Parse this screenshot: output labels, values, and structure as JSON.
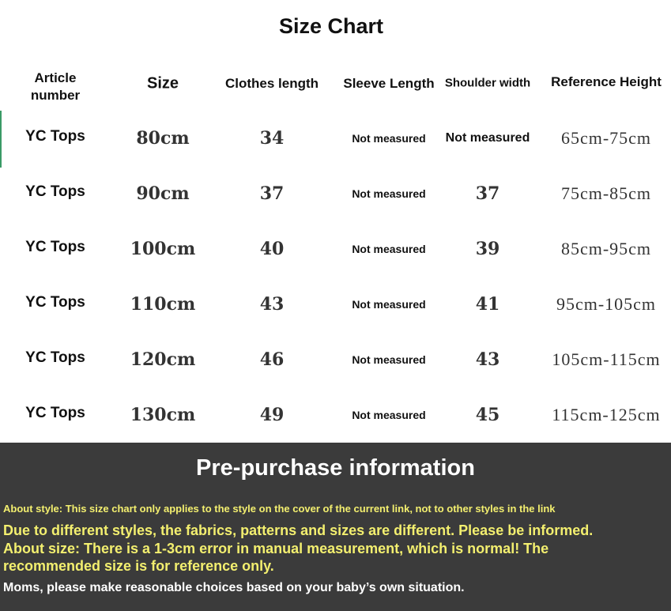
{
  "title": "Size Chart",
  "headers": [
    "Article number",
    "Size",
    "Clothes length",
    "Sleeve Length",
    "Shoulder width",
    "Reference Height"
  ],
  "rows": [
    {
      "article": "YC Tops",
      "size": "80cm",
      "clothes_length": "34",
      "sleeve_length": "Not measured",
      "shoulder_width": "Not measured",
      "reference_height": "65cm-75cm"
    },
    {
      "article": "YC Tops",
      "size": "90cm",
      "clothes_length": "37",
      "sleeve_length": "Not measured",
      "shoulder_width": "37",
      "reference_height": "75cm-85cm"
    },
    {
      "article": "YC Tops",
      "size": "100cm",
      "clothes_length": "40",
      "sleeve_length": "Not measured",
      "shoulder_width": "39",
      "reference_height": "85cm-95cm"
    },
    {
      "article": "YC Tops",
      "size": "110cm",
      "clothes_length": "43",
      "sleeve_length": "Not measured",
      "shoulder_width": "41",
      "reference_height": "95cm-105cm"
    },
    {
      "article": "YC Tops",
      "size": "120cm",
      "clothes_length": "46",
      "sleeve_length": "Not measured",
      "shoulder_width": "43",
      "reference_height": "105cm-115cm"
    },
    {
      "article": "YC Tops",
      "size": "130cm",
      "clothes_length": "49",
      "sleeve_length": "Not measured",
      "shoulder_width": "45",
      "reference_height": "115cm-125cm"
    }
  ],
  "info": {
    "title": "Pre-purchase information",
    "style_note": "About style: This size chart only applies to the style on the cover of the current link, not to other styles in the link",
    "fabric_note": "Due to different styles, the fabrics, patterns and sizes are different. Please be informed.",
    "size_note_1": "About size: There is a 1-3cm error in manual measurement, which is normal! The",
    "size_note_2": "recommended size is for reference only.",
    "moms_note": "Moms, please make reasonable choices based on your baby’s own situation."
  },
  "colors": {
    "info_bg": "#3b3b3b",
    "highlight_text": "#f3ef6f"
  }
}
